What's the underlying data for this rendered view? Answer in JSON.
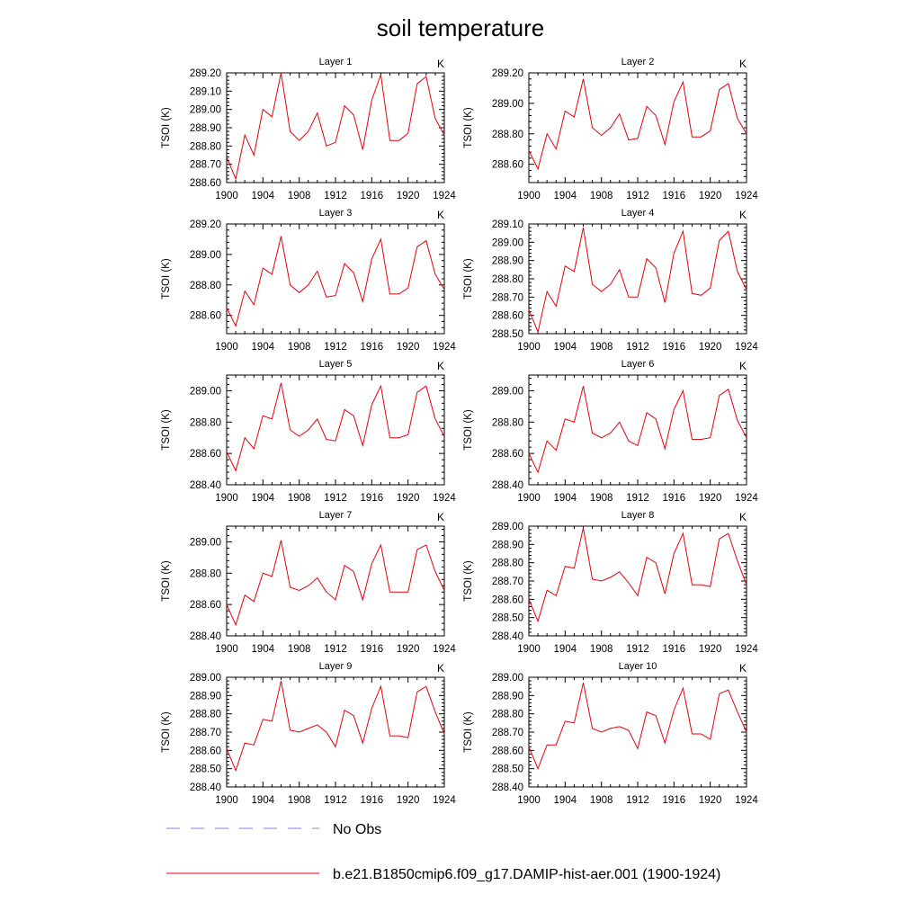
{
  "chart_data": {
    "type": "line",
    "title": "soil temperature",
    "x": [
      1900,
      1901,
      1902,
      1903,
      1904,
      1905,
      1906,
      1907,
      1908,
      1909,
      1910,
      1911,
      1912,
      1913,
      1914,
      1915,
      1916,
      1917,
      1918,
      1919,
      1920,
      1921,
      1922,
      1923,
      1924
    ],
    "xlim": [
      1900,
      1924
    ],
    "xticks": [
      "1900",
      "1904",
      "1908",
      "1912",
      "1916",
      "1920",
      "1924"
    ],
    "panels": [
      {
        "title": "Layer 1",
        "units": "K",
        "ylabel": "TSOI  (K)",
        "ylim": [
          288.6,
          289.2
        ],
        "yticks": [
          "288.60",
          "288.70",
          "288.80",
          "288.90",
          "289.00",
          "289.10",
          "289.20"
        ],
        "values": [
          288.74,
          288.62,
          288.86,
          288.75,
          289.0,
          288.96,
          289.2,
          288.88,
          288.83,
          288.88,
          288.98,
          288.8,
          288.82,
          289.02,
          288.97,
          288.78,
          289.05,
          289.19,
          288.83,
          288.83,
          288.87,
          289.14,
          289.18,
          288.95,
          288.86
        ]
      },
      {
        "title": "Layer 2",
        "units": "K",
        "ylabel": "TSOI  (K)",
        "ylim": [
          288.48,
          289.2
        ],
        "yticks": [
          "288.60",
          "288.80",
          "289.00",
          "289.20"
        ],
        "values": [
          288.69,
          288.57,
          288.8,
          288.7,
          288.95,
          288.91,
          289.16,
          288.84,
          288.79,
          288.84,
          288.93,
          288.76,
          288.77,
          288.98,
          288.92,
          288.73,
          289.01,
          289.14,
          288.78,
          288.78,
          288.82,
          289.09,
          289.13,
          288.9,
          288.8
        ]
      },
      {
        "title": "Layer 3",
        "units": "K",
        "ylabel": "TSOI  (K)",
        "ylim": [
          288.48,
          289.2
        ],
        "yticks": [
          "288.60",
          "288.80",
          "289.00",
          "289.20"
        ],
        "values": [
          288.65,
          288.53,
          288.76,
          288.67,
          288.91,
          288.87,
          289.12,
          288.8,
          288.75,
          288.8,
          288.89,
          288.72,
          288.73,
          288.94,
          288.88,
          288.69,
          288.97,
          289.1,
          288.74,
          288.74,
          288.78,
          289.05,
          289.09,
          288.87,
          288.77
        ]
      },
      {
        "title": "Layer 4",
        "units": "K",
        "ylabel": "TSOI  (K)",
        "ylim": [
          288.5,
          289.1
        ],
        "yticks": [
          "288.50",
          "288.60",
          "288.70",
          "288.80",
          "288.90",
          "289.00",
          "289.10"
        ],
        "values": [
          288.63,
          288.51,
          288.73,
          288.65,
          288.87,
          288.84,
          289.08,
          288.77,
          288.73,
          288.77,
          288.85,
          288.7,
          288.7,
          288.91,
          288.86,
          288.67,
          288.94,
          289.06,
          288.72,
          288.71,
          288.75,
          289.01,
          289.06,
          288.84,
          288.74
        ]
      },
      {
        "title": "Layer 5",
        "units": "K",
        "ylabel": "TSOI  (K)",
        "ylim": [
          288.4,
          289.1
        ],
        "yticks": [
          "288.40",
          "288.60",
          "288.80",
          "289.00"
        ],
        "values": [
          288.61,
          288.49,
          288.7,
          288.63,
          288.84,
          288.82,
          289.05,
          288.75,
          288.71,
          288.75,
          288.82,
          288.69,
          288.68,
          288.88,
          288.84,
          288.65,
          288.91,
          289.03,
          288.7,
          288.7,
          288.72,
          288.99,
          289.03,
          288.82,
          288.71
        ]
      },
      {
        "title": "Layer 6",
        "units": "K",
        "ylabel": "TSOI  (K)",
        "ylim": [
          288.4,
          289.1
        ],
        "yticks": [
          "288.40",
          "288.60",
          "288.80",
          "289.00"
        ],
        "values": [
          288.6,
          288.48,
          288.68,
          288.62,
          288.82,
          288.8,
          289.03,
          288.73,
          288.7,
          288.73,
          288.8,
          288.68,
          288.65,
          288.86,
          288.82,
          288.63,
          288.88,
          289.0,
          288.69,
          288.69,
          288.7,
          288.97,
          289.01,
          288.81,
          288.7
        ]
      },
      {
        "title": "Layer 7",
        "units": "K",
        "ylabel": "TSOI  (K)",
        "ylim": [
          288.4,
          289.1
        ],
        "yticks": [
          "288.40",
          "288.60",
          "288.80",
          "289.00"
        ],
        "values": [
          288.6,
          288.47,
          288.66,
          288.62,
          288.8,
          288.78,
          289.01,
          288.71,
          288.69,
          288.72,
          288.77,
          288.68,
          288.63,
          288.85,
          288.81,
          288.63,
          288.86,
          288.98,
          288.68,
          288.68,
          288.68,
          288.95,
          288.98,
          288.81,
          288.69
        ]
      },
      {
        "title": "Layer 8",
        "units": "K",
        "ylabel": "TSOI  (K)",
        "ylim": [
          288.4,
          289.0
        ],
        "yticks": [
          "288.40",
          "288.50",
          "288.60",
          "288.70",
          "288.80",
          "288.90",
          "289.00"
        ],
        "values": [
          288.6,
          288.48,
          288.65,
          288.62,
          288.78,
          288.77,
          288.99,
          288.71,
          288.7,
          288.72,
          288.75,
          288.69,
          288.62,
          288.83,
          288.8,
          288.63,
          288.85,
          288.96,
          288.68,
          288.68,
          288.67,
          288.93,
          288.96,
          288.81,
          288.68
        ]
      },
      {
        "title": "Layer 9",
        "units": "K",
        "ylabel": "TSOI  (K)",
        "ylim": [
          288.4,
          289.0
        ],
        "yticks": [
          "288.40",
          "288.50",
          "288.60",
          "288.70",
          "288.80",
          "288.90",
          "289.00"
        ],
        "values": [
          288.61,
          288.49,
          288.64,
          288.63,
          288.77,
          288.76,
          288.98,
          288.71,
          288.7,
          288.72,
          288.74,
          288.7,
          288.62,
          288.82,
          288.79,
          288.64,
          288.83,
          288.95,
          288.68,
          288.68,
          288.67,
          288.92,
          288.95,
          288.81,
          288.69
        ]
      },
      {
        "title": "Layer 10",
        "units": "K",
        "ylabel": "TSOI  (K)",
        "ylim": [
          288.4,
          289.0
        ],
        "yticks": [
          "288.40",
          "288.50",
          "288.60",
          "288.70",
          "288.80",
          "288.90",
          "289.00"
        ],
        "values": [
          288.62,
          288.5,
          288.63,
          288.63,
          288.76,
          288.75,
          288.97,
          288.72,
          288.7,
          288.72,
          288.73,
          288.71,
          288.61,
          288.81,
          288.79,
          288.64,
          288.82,
          288.94,
          288.69,
          288.69,
          288.66,
          288.91,
          288.93,
          288.81,
          288.7
        ]
      }
    ],
    "series": [
      {
        "name": "b.e21.B1850cmip6.f09_g17.DAMIP-hist-aer.001 (1900-1924)",
        "color": "#e8000b",
        "style": "solid"
      }
    ],
    "grid": false
  },
  "legend": {
    "items": [
      {
        "label": "No Obs",
        "color": "#9a98f0",
        "style": "dashed"
      },
      {
        "label": "b.e21.B1850cmip6.f09_g17.DAMIP-hist-aer.001 (1900-1924)",
        "color": "#e8000b",
        "style": "solid"
      }
    ]
  }
}
